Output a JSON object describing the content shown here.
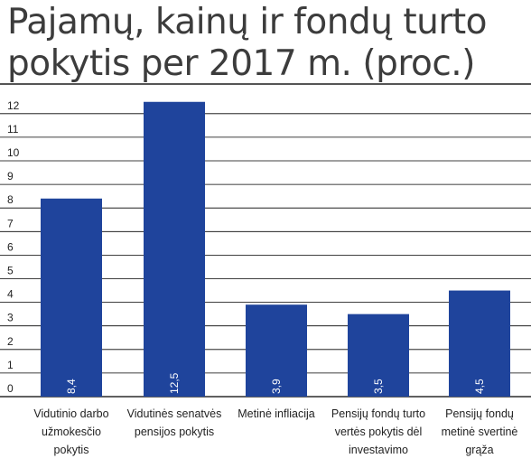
{
  "title_lines": [
    "Pajamų, kainų ir fondų turto",
    "pokytis per 2017 m. (proc.)"
  ],
  "colors": {
    "bar": "#1f449c",
    "grid": "#000000",
    "text": "#222222"
  },
  "chart_data": {
    "type": "bar",
    "title": "Pajamų, kainų ir fondų turto pokytis per 2017 m. (proc.)",
    "categories": [
      [
        "Vidutinio darbo",
        "užmokesčio",
        "pokytis"
      ],
      [
        "Vidutinės senatvės",
        "pensijos pokytis"
      ],
      [
        "Metinė infliacija"
      ],
      [
        "Pensijų fondų turto",
        "vertės pokytis dėl",
        "investavimo"
      ],
      [
        "Pensijų fondų",
        "metinė svertinė",
        "grąža"
      ]
    ],
    "values": [
      8.4,
      12.5,
      3.9,
      3.5,
      4.5
    ],
    "data_labels": [
      "8,4",
      "12,5",
      "3,9",
      "3,5",
      "4,5"
    ],
    "yticks": [
      "0",
      "1",
      "2",
      "3",
      "4",
      "5",
      "6",
      "7",
      "8",
      "9",
      "10",
      "11",
      "12"
    ],
    "ylim": [
      0,
      12.5
    ],
    "xlabel": "",
    "ylabel": "",
    "grid": true
  }
}
